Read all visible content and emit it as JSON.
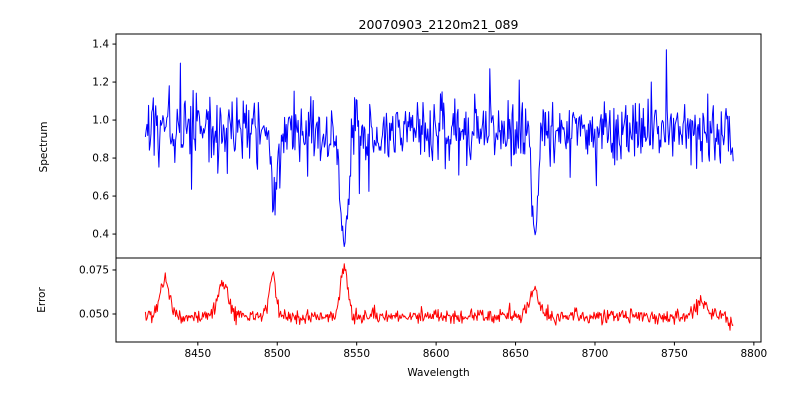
{
  "title": "20070903_2120m21_089",
  "chart_data": {
    "type": "line",
    "xlabel": "Wavelength",
    "xlim": [
      8398.5,
      8804.5
    ],
    "x_data_range": [
      8417,
      8787
    ],
    "n_points": 740,
    "xticks": [
      8450,
      8500,
      8550,
      8600,
      8650,
      8700,
      8750,
      8800
    ],
    "xtick_labels": [
      "8450",
      "8500",
      "8550",
      "8600",
      "8650",
      "8700",
      "8750",
      "8800"
    ],
    "grid": false,
    "legend": "none",
    "noise_seed": 7,
    "subplots": [
      {
        "name": "spectrum",
        "ylabel": "Spectrum",
        "line_color": "#0000ff",
        "ylim": [
          0.274,
          1.453
        ],
        "yticks": [
          0.4,
          0.6,
          0.8,
          1.0,
          1.2,
          1.4
        ],
        "ytick_labels": [
          "0.4",
          "0.6",
          "0.8",
          "1.0",
          "1.2",
          "1.4"
        ],
        "continuum_level": 0.95,
        "noise_sigma": 0.085,
        "down_spike_prob": 0.035,
        "down_spike_amp": 0.28,
        "up_spike_prob": 0.02,
        "up_spike_amp": 0.22,
        "clip": [
          0.3,
          1.4
        ],
        "absorption_lines": [
          {
            "center": 8498,
            "depth_fraction": 0.42,
            "sigma": 1.6
          },
          {
            "center": 8542,
            "depth_fraction": 0.63,
            "sigma": 2.6
          },
          {
            "center": 8662,
            "depth_fraction": 0.56,
            "sigma": 2.0
          }
        ],
        "peak_points": [
          {
            "x": 8745,
            "y": 1.37
          },
          {
            "x": 8439,
            "y": 1.3
          },
          {
            "x": 8634,
            "y": 1.27
          }
        ]
      },
      {
        "name": "error",
        "ylabel": "Error",
        "line_color": "#ff0000",
        "ylim": [
          0.0341,
          0.0818
        ],
        "yticks": [
          0.05,
          0.075
        ],
        "ytick_labels": [
          "0.050",
          "0.075"
        ],
        "baseline_level": 0.0485,
        "noise_sigma": 0.0021,
        "up_spike_prob": 0.05,
        "up_spike_amp": 0.006,
        "clip": [
          0.04,
          0.0795
        ],
        "bumps": [
          {
            "center": 8429,
            "height": 0.02,
            "sigma": 3.0
          },
          {
            "center": 8466,
            "height": 0.019,
            "sigma": 3.0
          },
          {
            "center": 8497,
            "height": 0.024,
            "sigma": 2.0
          },
          {
            "center": 8542,
            "height": 0.03,
            "sigma": 2.2
          },
          {
            "center": 8662,
            "height": 0.016,
            "sigma": 3.0
          },
          {
            "center": 8767,
            "height": 0.008,
            "sigma": 4.0
          },
          {
            "center": 8789,
            "height": -0.007,
            "sigma": 3.0
          }
        ]
      }
    ]
  }
}
